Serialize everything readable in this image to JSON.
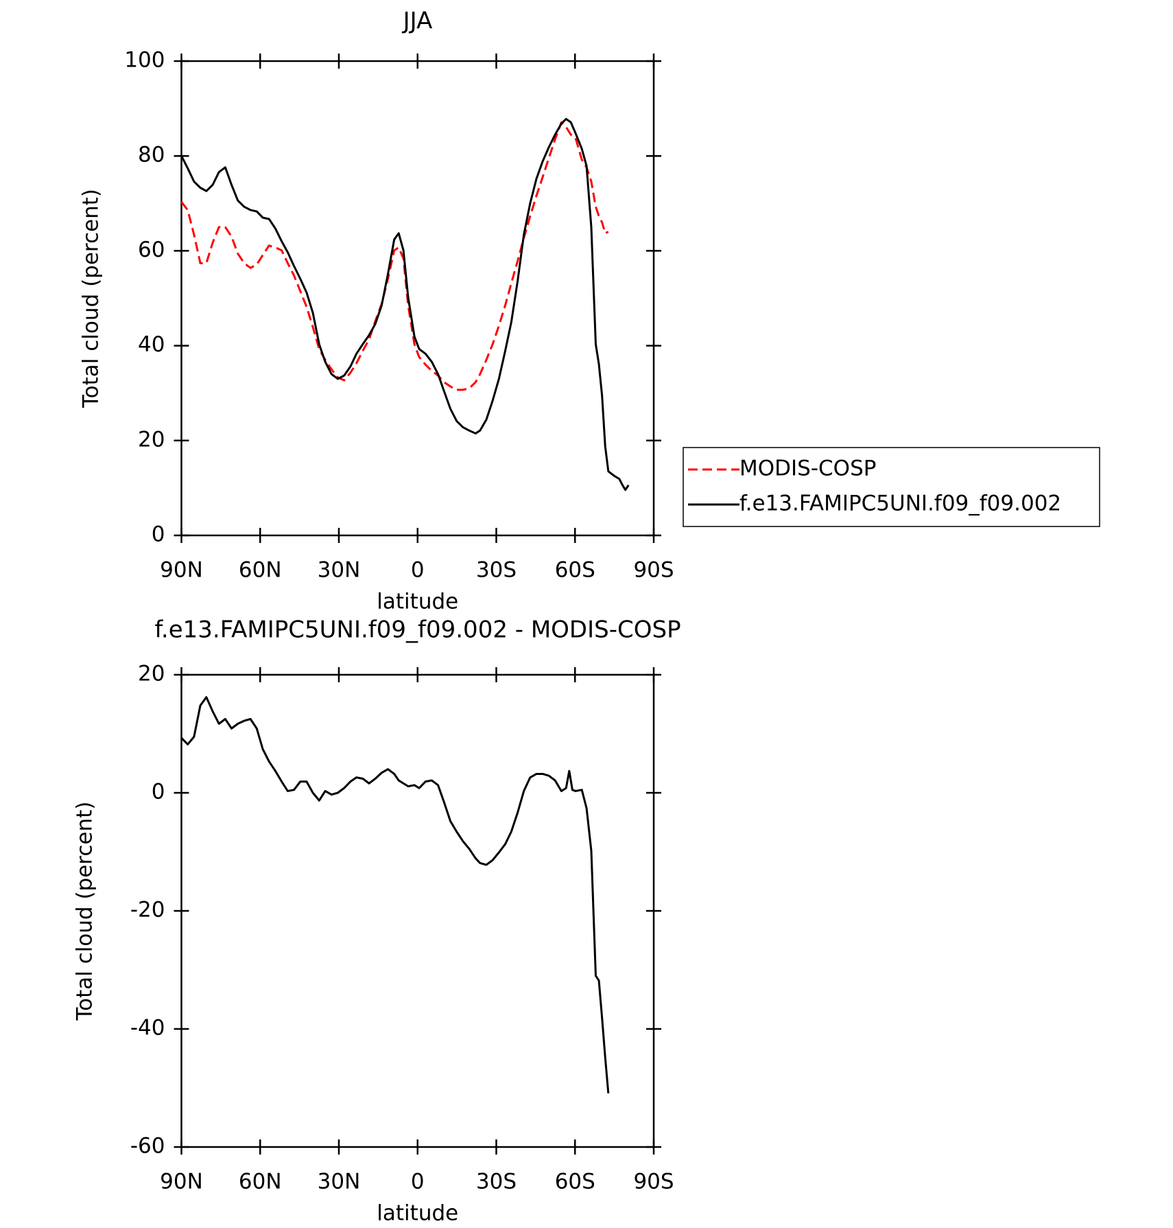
{
  "chart_data": [
    {
      "type": "line",
      "title": "JJA",
      "xlabel": "latitude",
      "ylabel": "Total cloud (percent)",
      "x": [
        90,
        87.6,
        85.2,
        82.8,
        80.5,
        78.1,
        75.7,
        73.3,
        70.9,
        68.5,
        66.1,
        63.7,
        61.3,
        59,
        56.6,
        54.2,
        51.8,
        49.5,
        47.1,
        44.7,
        42.3,
        39.9,
        37.5,
        35.2,
        32.8,
        30.4,
        28,
        25.6,
        23.3,
        20.9,
        18.5,
        16.1,
        13.7,
        11.3,
        8.9,
        7.2,
        5.4,
        3.6,
        1.2,
        -0.6,
        -3,
        -5.4,
        -7.8,
        -10.1,
        -12.5,
        -14.9,
        -17.3,
        -19.7,
        -22.1,
        -23.8,
        -26.2,
        -28.6,
        -31,
        -33.4,
        -35.7,
        -38.1,
        -40.5,
        -42.9,
        -45.3,
        -47.7,
        -50,
        -52.4,
        -54.8,
        -56.6,
        -58.4,
        -60.2,
        -62.6,
        -64.4,
        -66.2,
        -67.9,
        -69.1,
        -70.3,
        -71.5,
        -72.7,
        -75.1,
        -76.9,
        -78.1,
        -79.2,
        -80.4
      ],
      "xlim": [
        90,
        -90
      ],
      "xticks": [
        {
          "value": 90,
          "label": "90N"
        },
        {
          "value": 60,
          "label": "60N"
        },
        {
          "value": 30,
          "label": "30N"
        },
        0,
        {
          "value": -30,
          "label": "30S"
        },
        {
          "value": -60,
          "label": "60S"
        },
        {
          "value": -90,
          "label": "90S"
        }
      ],
      "ylim": [
        0,
        100
      ],
      "yticks": [
        0,
        20,
        40,
        60,
        80,
        100
      ],
      "legend": "right",
      "series": [
        {
          "name": "MODIS-COSP",
          "color": "#ff0000",
          "dash": "dashed",
          "values": [
            70.3,
            68.6,
            63.4,
            57.4,
            57.4,
            61.7,
            65,
            65,
            63,
            59.4,
            57.4,
            56.4,
            57.1,
            59.1,
            61.1,
            60.7,
            60.1,
            57.4,
            54.8,
            51.5,
            48.2,
            43.9,
            39.3,
            37,
            35,
            33.3,
            32.7,
            34.3,
            36.3,
            38.9,
            41.3,
            45.2,
            48.8,
            54.1,
            60.1,
            60.7,
            58.4,
            48.5,
            40.3,
            37.6,
            36,
            34.7,
            33.7,
            32.3,
            31.4,
            30.7,
            30.7,
            31,
            32.3,
            34,
            37,
            40.3,
            44.2,
            48.5,
            53.1,
            57.8,
            62.7,
            67.3,
            71.6,
            75.6,
            79.5,
            83.5,
            87.1,
            86.1,
            84.5,
            83.8,
            79.2,
            77.6,
            74.6,
            69.3,
            67.3,
            66,
            63.7,
            64,
            null,
            null,
            null,
            null,
            null
          ]
        },
        {
          "name": "f.e13.FAMIPC5UNI.f09_f09.002",
          "color": "#000000",
          "dash": "solid",
          "values": [
            80,
            77.4,
            74.6,
            73.3,
            72.6,
            73.9,
            76.6,
            77.6,
            73.9,
            70.6,
            69.3,
            68.6,
            68.3,
            67,
            66.7,
            64.7,
            62,
            59.7,
            56.8,
            54.1,
            51.2,
            46.9,
            40.3,
            36.6,
            34,
            33,
            33.7,
            35.6,
            38.3,
            40.3,
            42.2,
            44.6,
            48.5,
            55.1,
            62.4,
            63.7,
            60.1,
            50.2,
            41.9,
            39.3,
            38.3,
            36.6,
            34,
            30.4,
            26.7,
            24.1,
            22.8,
            22.1,
            21.5,
            22.1,
            24.4,
            28.4,
            33,
            38.9,
            44.9,
            53.5,
            63.4,
            70,
            75.2,
            78.9,
            81.8,
            84.5,
            86.8,
            87.8,
            87.1,
            84.8,
            81.5,
            77.9,
            65,
            40.3,
            36.1,
            29.5,
            18.8,
            13.5,
            12.5,
            11.9,
            10.6,
            9.6,
            10.6
          ]
        }
      ]
    },
    {
      "type": "line",
      "title": "f.e13.FAMIPC5UNI.f09_f09.002 - MODIS-COSP",
      "xlabel": "latitude",
      "ylabel": "Total cloud (percent)",
      "x": [
        90,
        87.6,
        85.2,
        82.8,
        80.5,
        78.1,
        75.7,
        73.3,
        70.9,
        68.5,
        66.1,
        63.7,
        61.3,
        59,
        56.6,
        54.2,
        51.8,
        49.5,
        47.1,
        44.7,
        42.3,
        39.9,
        37.5,
        35.2,
        32.8,
        30.4,
        28,
        25.6,
        23.3,
        20.9,
        18.5,
        16.1,
        13.7,
        11.3,
        8.9,
        7.2,
        5.4,
        3.6,
        1.2,
        -0.6,
        -3,
        -5.4,
        -7.8,
        -10.1,
        -12.5,
        -14.9,
        -17.3,
        -19.7,
        -22.1,
        -23.8,
        -26.2,
        -28.6,
        -31,
        -33.4,
        -35.7,
        -38.1,
        -40.5,
        -42.9,
        -45.3,
        -47.7,
        -50,
        -52.4,
        -54.8,
        -56.6,
        -57.8,
        -59,
        -60.2,
        -62.6,
        -64.4,
        -66.2,
        -67.9,
        -69.1,
        -70.3,
        -71.5,
        -72.7
      ],
      "xlim": [
        90,
        -90
      ],
      "xticks": [
        {
          "value": 90,
          "label": "90N"
        },
        {
          "value": 60,
          "label": "60N"
        },
        {
          "value": 30,
          "label": "30N"
        },
        0,
        {
          "value": -30,
          "label": "30S"
        },
        {
          "value": -60,
          "label": "60S"
        },
        {
          "value": -90,
          "label": "90S"
        }
      ],
      "ylim": [
        -60,
        20
      ],
      "yticks": [
        -60,
        -40,
        -20,
        0,
        20
      ],
      "series": [
        {
          "color": "#000000",
          "dash": "solid",
          "values": [
            9.3,
            8.2,
            9.5,
            14.8,
            16.2,
            13.8,
            11.7,
            12.5,
            10.9,
            11.7,
            12.2,
            12.5,
            10.9,
            7.4,
            5.3,
            3.7,
            1.9,
            0.3,
            0.5,
            1.9,
            1.9,
            0,
            -1.3,
            0.3,
            -0.3,
            0,
            0.8,
            1.9,
            2.6,
            2.4,
            1.6,
            2.4,
            3.4,
            4,
            3.2,
            2.1,
            1.6,
            1.1,
            1.3,
            0.8,
            1.9,
            2.1,
            1.3,
            -1.6,
            -4.8,
            -6.6,
            -8.2,
            -9.5,
            -11.1,
            -11.9,
            -12.2,
            -11.4,
            -10.1,
            -8.7,
            -6.6,
            -3.4,
            0.3,
            2.6,
            3.2,
            3.2,
            2.9,
            2.1,
            0.3,
            0.8,
            3.7,
            0.5,
            0.3,
            0.5,
            -2.6,
            -9.8,
            -31,
            -31.8,
            -38.1,
            -44.8,
            -50.9
          ]
        }
      ]
    }
  ]
}
